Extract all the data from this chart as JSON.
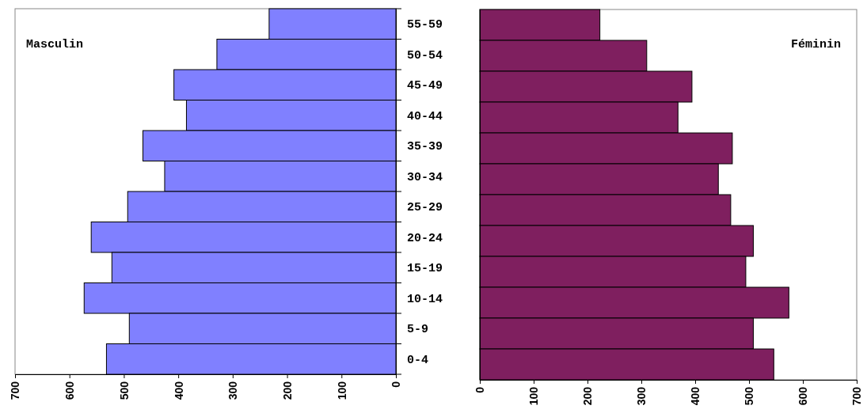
{
  "chart_data": [
    {
      "type": "bar",
      "orientation": "horizontal",
      "annotations": [
        "Masculin"
      ],
      "categories": [
        "55-59",
        "50-54",
        "45-49",
        "40-44",
        "35-39",
        "30-34",
        "25-29",
        "20-24",
        "15-19",
        "10-14",
        "5-9",
        "0-4"
      ],
      "series": [
        {
          "color": "#8080ff",
          "values": [
            233,
            329,
            408,
            385,
            465,
            425,
            493,
            560,
            522,
            573,
            490,
            532
          ]
        }
      ],
      "xlim": [
        700,
        0
      ],
      "xticks": [
        700,
        600,
        500,
        400,
        300,
        200,
        100,
        0
      ]
    },
    {
      "type": "bar",
      "orientation": "horizontal",
      "annotations": [
        "Féminin"
      ],
      "categories": [
        null,
        null,
        null,
        null,
        null,
        null,
        null,
        null,
        null,
        null,
        null,
        null
      ],
      "series": [
        {
          "color": "#7f1f5f",
          "values": [
            223,
            310,
            394,
            368,
            469,
            443,
            466,
            508,
            494,
            574,
            508,
            546
          ]
        }
      ],
      "xlim": [
        0,
        700
      ],
      "xticks": [
        0,
        100,
        200,
        300,
        400,
        500,
        600,
        700
      ]
    }
  ]
}
